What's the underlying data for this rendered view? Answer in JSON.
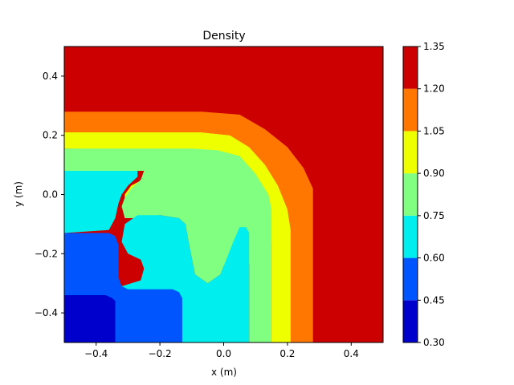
{
  "chart_data": {
    "type": "contourf",
    "title": "Density",
    "xlabel": "x (m)",
    "ylabel": "y (m)",
    "xlim": [
      -0.5,
      0.5
    ],
    "ylim": [
      -0.5,
      0.5
    ],
    "grid": false,
    "x_ticks": [
      -0.4,
      -0.2,
      0.0,
      0.2,
      0.4
    ],
    "x_tick_labels": [
      "−0.4",
      "−0.2",
      "0.0",
      "0.2",
      "0.4"
    ],
    "y_ticks": [
      -0.4,
      -0.2,
      0.0,
      0.2,
      0.4
    ],
    "y_tick_labels": [
      "−0.4",
      "−0.2",
      "0.0",
      "0.2",
      "0.4"
    ],
    "colorbar": {
      "levels": [
        0.3,
        0.45,
        0.6,
        0.75,
        0.9,
        1.05,
        1.2,
        1.35
      ],
      "tick_labels": [
        "0.30",
        "0.45",
        "0.60",
        "0.75",
        "0.90",
        "1.05",
        "1.20",
        "1.35"
      ],
      "colors": [
        "#0000cc",
        "#0055ff",
        "#00eeee",
        "#80ff80",
        "#eeff00",
        "#ff7700",
        "#cc0000"
      ]
    },
    "regions": [
      {
        "name": "level-0.30-0.45",
        "color_index": 0,
        "outline": [
          [
            -0.5,
            -0.5
          ],
          [
            -0.34,
            -0.5
          ],
          [
            -0.34,
            -0.36
          ],
          [
            -0.35,
            -0.35
          ],
          [
            -0.37,
            -0.34
          ],
          [
            -0.5,
            -0.34
          ]
        ]
      },
      {
        "name": "level-0.45-0.60",
        "color_index": 1,
        "outline": [
          [
            -0.5,
            -0.5
          ],
          [
            -0.13,
            -0.5
          ],
          [
            -0.13,
            -0.35
          ],
          [
            -0.14,
            -0.33
          ],
          [
            -0.16,
            -0.32
          ],
          [
            -0.3,
            -0.32
          ],
          [
            -0.32,
            -0.31
          ],
          [
            -0.33,
            -0.28
          ],
          [
            -0.33,
            -0.17
          ],
          [
            -0.34,
            -0.14
          ],
          [
            -0.36,
            -0.13
          ],
          [
            -0.5,
            -0.13
          ]
        ]
      },
      {
        "name": "level-0.60-0.75",
        "color_index": 2,
        "outline": [
          [
            -0.5,
            -0.5
          ],
          [
            0.08,
            -0.5
          ],
          [
            0.08,
            -0.13
          ],
          [
            0.07,
            -0.11
          ],
          [
            0.05,
            -0.11
          ],
          [
            0.03,
            -0.16
          ],
          [
            -0.01,
            -0.27
          ],
          [
            -0.05,
            -0.3
          ],
          [
            -0.09,
            -0.27
          ],
          [
            -0.11,
            -0.16
          ],
          [
            -0.12,
            -0.1
          ],
          [
            -0.14,
            -0.08
          ],
          [
            -0.2,
            -0.07
          ],
          [
            -0.27,
            -0.07
          ],
          [
            -0.31,
            -0.1
          ],
          [
            -0.32,
            -0.16
          ],
          [
            -0.3,
            -0.2
          ],
          [
            -0.26,
            -0.22
          ],
          [
            -0.25,
            -0.25
          ],
          [
            -0.26,
            -0.29
          ],
          [
            -0.32,
            -0.31
          ],
          [
            -0.34,
            -0.35
          ],
          [
            -0.34,
            -0.5
          ],
          [
            -0.5,
            -0.5
          ],
          [
            -0.5,
            0.08
          ],
          [
            -0.27,
            0.08
          ],
          [
            -0.27,
            0.06
          ],
          [
            -0.3,
            0.03
          ],
          [
            -0.32,
            0.0
          ],
          [
            -0.33,
            -0.03
          ],
          [
            -0.34,
            -0.08
          ],
          [
            -0.36,
            -0.12
          ],
          [
            -0.5,
            -0.13
          ]
        ]
      },
      {
        "name": "level-0.75-0.90",
        "color_index": 3,
        "outline": [
          [
            -0.5,
            0.08
          ],
          [
            -0.25,
            0.08
          ],
          [
            -0.26,
            0.05
          ],
          [
            -0.29,
            0.02
          ],
          [
            -0.31,
            -0.01
          ],
          [
            -0.32,
            -0.04
          ],
          [
            -0.31,
            -0.08
          ],
          [
            -0.27,
            -0.08
          ],
          [
            -0.2,
            -0.07
          ],
          [
            -0.14,
            -0.08
          ],
          [
            -0.12,
            -0.1
          ],
          [
            -0.11,
            -0.16
          ],
          [
            -0.09,
            -0.27
          ],
          [
            -0.05,
            -0.3
          ],
          [
            -0.01,
            -0.27
          ],
          [
            0.03,
            -0.16
          ],
          [
            0.05,
            -0.11
          ],
          [
            0.07,
            -0.11
          ],
          [
            0.08,
            -0.13
          ],
          [
            0.08,
            -0.5
          ],
          [
            0.15,
            -0.5
          ],
          [
            0.15,
            -0.05
          ],
          [
            0.14,
            0.0
          ],
          [
            0.1,
            0.07
          ],
          [
            0.05,
            0.13
          ],
          [
            -0.02,
            0.15
          ],
          [
            -0.1,
            0.155
          ],
          [
            -0.5,
            0.155
          ]
        ]
      },
      {
        "name": "level-0.90-1.05",
        "color_index": 4,
        "outline": [
          [
            -0.5,
            0.21
          ],
          [
            -0.07,
            0.21
          ],
          [
            0.02,
            0.2
          ],
          [
            0.08,
            0.16
          ],
          [
            0.13,
            0.1
          ],
          [
            0.17,
            0.03
          ],
          [
            0.2,
            -0.05
          ],
          [
            0.21,
            -0.12
          ],
          [
            0.21,
            -0.5
          ],
          [
            0.15,
            -0.5
          ],
          [
            0.15,
            -0.16
          ],
          [
            0.13,
            -0.12
          ],
          [
            0.11,
            -0.12
          ],
          [
            0.1,
            -0.15
          ],
          [
            0.09,
            -0.22
          ],
          [
            0.06,
            -0.26
          ],
          [
            0.01,
            -0.25
          ],
          [
            -0.03,
            -0.2
          ],
          [
            -0.08,
            -0.07
          ],
          [
            -0.11,
            -0.05
          ],
          [
            -0.16,
            -0.05
          ],
          [
            -0.22,
            -0.06
          ],
          [
            -0.29,
            -0.05
          ],
          [
            -0.31,
            -0.03
          ],
          [
            -0.31,
            0.0
          ],
          [
            -0.29,
            0.03
          ],
          [
            -0.22,
            0.07
          ],
          [
            -0.17,
            0.09
          ],
          [
            -0.15,
            0.11
          ],
          [
            -0.18,
            0.15
          ],
          [
            -0.5,
            0.155
          ]
        ]
      },
      {
        "name": "level-1.05-1.20",
        "color_index": 5,
        "outline": [
          [
            -0.5,
            0.28
          ],
          [
            -0.07,
            0.28
          ],
          [
            0.05,
            0.27
          ],
          [
            0.13,
            0.22
          ],
          [
            0.2,
            0.16
          ],
          [
            0.25,
            0.09
          ],
          [
            0.28,
            0.02
          ],
          [
            0.28,
            -0.5
          ],
          [
            0.21,
            -0.5
          ],
          [
            0.21,
            -0.12
          ],
          [
            0.2,
            -0.05
          ],
          [
            0.17,
            0.03
          ],
          [
            0.13,
            0.1
          ],
          [
            0.08,
            0.16
          ],
          [
            0.02,
            0.2
          ],
          [
            -0.07,
            0.21
          ],
          [
            -0.5,
            0.21
          ]
        ]
      }
    ]
  }
}
